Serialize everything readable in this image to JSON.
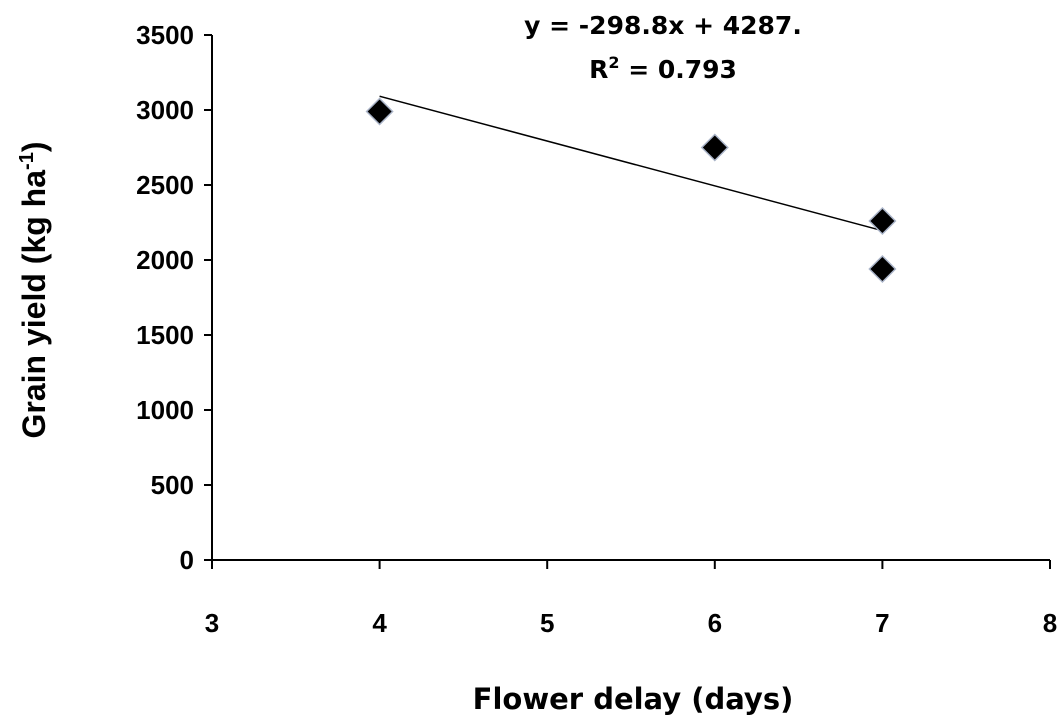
{
  "chart_data": {
    "type": "scatter",
    "xlabel": "Flower delay (days)",
    "ylabel": {
      "main": "Grain yield (kg ha",
      "superscript": "-1",
      "close": ")"
    },
    "xlim": [
      3,
      8
    ],
    "ylim": [
      0,
      3500
    ],
    "x_ticks": [
      3,
      4,
      5,
      6,
      7,
      8
    ],
    "y_ticks": [
      0,
      500,
      1000,
      1500,
      2000,
      2500,
      3000,
      3500
    ],
    "x_tick_labels": [
      "3",
      "4",
      "5",
      "6",
      "7",
      "8"
    ],
    "y_tick_labels": [
      "0",
      "500",
      "1000",
      "1500",
      "2000",
      "2500",
      "3000",
      "3500"
    ],
    "grid": false,
    "points": [
      {
        "x": 4,
        "y": 2990
      },
      {
        "x": 6,
        "y": 2750
      },
      {
        "x": 7,
        "y": 2260
      },
      {
        "x": 7,
        "y": 1940
      }
    ],
    "trendline": {
      "slope": -298.8,
      "intercept": 4287,
      "x_range": [
        4,
        7
      ],
      "equation": "y = -298.8x + 4287.",
      "r2_label": "R",
      "r2_sup": "2",
      "r2_value": " = 0.793"
    },
    "colors": {
      "marker": "#000000",
      "marker_outline": "#aab4c8",
      "trendline": "#000000",
      "axis": "#000000"
    }
  }
}
